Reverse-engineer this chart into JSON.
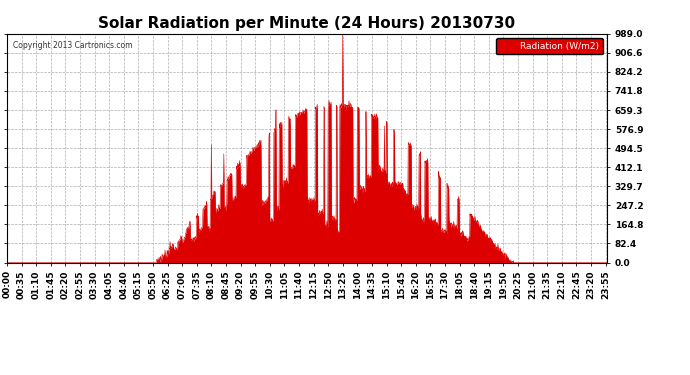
{
  "title": "Solar Radiation per Minute (24 Hours) 20130730",
  "copyright_text": "Copyright 2013 Cartronics.com",
  "legend_label": "Radiation (W/m2)",
  "background_color": "#ffffff",
  "plot_bg_color": "#ffffff",
  "grid_color": "#999999",
  "fill_color": "#dd0000",
  "line_color": "#dd0000",
  "dashed_line_color": "#dd0000",
  "y_max": 989.0,
  "y_min": 0.0,
  "y_ticks": [
    0.0,
    82.4,
    164.8,
    247.2,
    329.7,
    412.1,
    494.5,
    576.9,
    659.3,
    741.8,
    824.2,
    906.6,
    989.0
  ],
  "title_fontsize": 11,
  "tick_fontsize": 6.5,
  "total_minutes": 1440,
  "sunrise_min": 355,
  "sunset_min": 1215,
  "peak_min": 805,
  "peak_val": 989.0
}
